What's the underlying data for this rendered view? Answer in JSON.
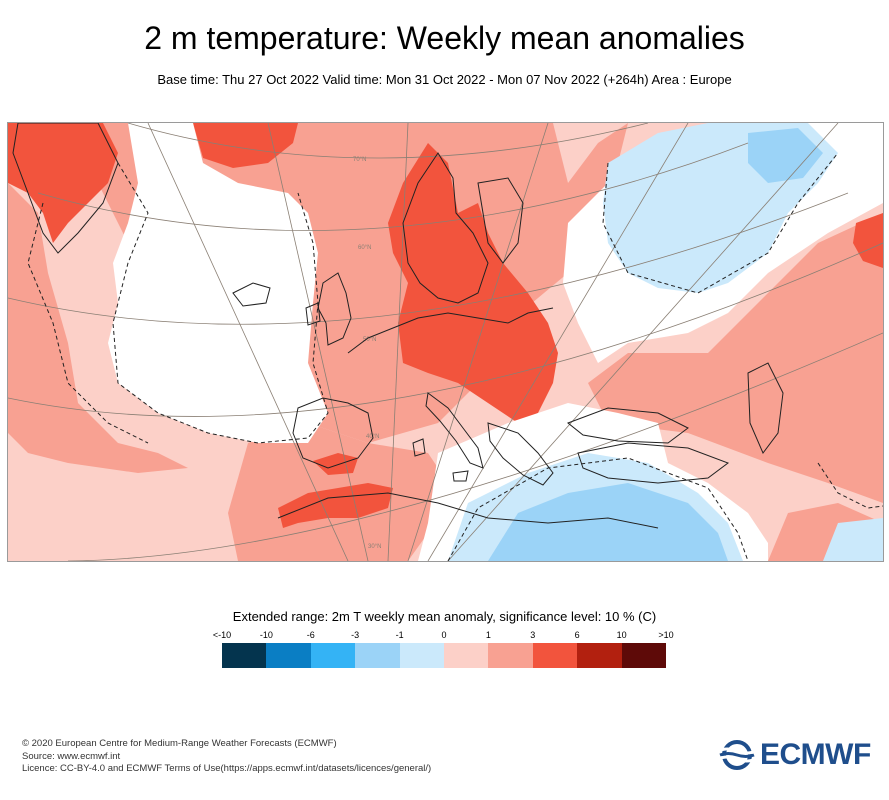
{
  "header": {
    "title": "2 m temperature: Weekly mean anomalies",
    "subtitle": "Base time: Thu 27 Oct 2022 Valid time: Mon 31 Oct 2022 - Mon 07 Nov 2022 (+264h) Area : Europe"
  },
  "map": {
    "lat_labels": [
      "70°N",
      "60°N",
      "50°N",
      "40°N",
      "30°N"
    ],
    "colors": {
      "ocean_pos_light": "#fcd0c8",
      "pos_medium": "#f8a192",
      "pos_strong": "#f2543d",
      "pos_very_strong": "#b2200f",
      "neutral": "#ffffff",
      "neg_light": "#cbe9fb",
      "neg_medium": "#9bd3f7",
      "coast": "#222222",
      "graticule": "#8a7f74"
    }
  },
  "legend": {
    "title": "Extended range: 2m T weekly mean anomaly, significance level: 10 % (C)",
    "ticks": [
      "<-10",
      "-10",
      "-6",
      "-3",
      "-1",
      "0",
      "1",
      "3",
      "6",
      "10",
      ">10"
    ],
    "colors": [
      "#04344e",
      "#0a7ec4",
      "#34b3f5",
      "#9bd3f7",
      "#cbe9fb",
      "#fcd0c8",
      "#f8a192",
      "#f2543d",
      "#b2200f",
      "#5e0a08"
    ]
  },
  "footer": {
    "line1": "© 2020 European Centre for Medium-Range Weather Forecasts (ECMWF)",
    "line2": "Source: www.ecmwf.int",
    "line3": "Licence: CC-BY-4.0 and ECMWF Terms of Use(https://apps.ecmwf.int/datasets/licences/general/)"
  },
  "logo": {
    "text": "ECMWF",
    "color": "#1f4e8c"
  }
}
